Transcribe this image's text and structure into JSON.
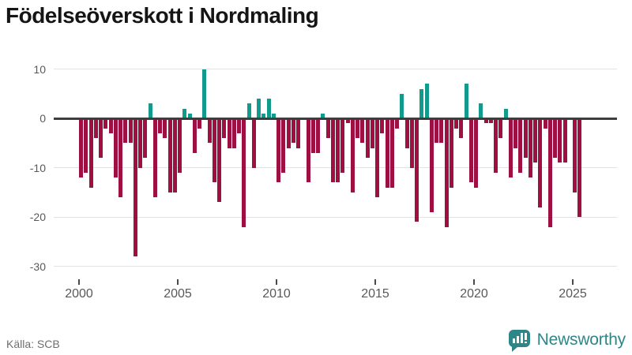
{
  "title": "Födelseöverskott i Nordmaling",
  "source": "Källa: SCB",
  "brand": {
    "name": "Newsworthy"
  },
  "chart_data": {
    "type": "bar",
    "title": "Födelseöverskott i Nordmaling",
    "frequency": "quarterly",
    "start": "2000-Q1",
    "end": "2025-Q2",
    "x_tick_labels": [
      "2000",
      "2005",
      "2010",
      "2015",
      "2020",
      "2025"
    ],
    "y_ticks": [
      10,
      0,
      -10,
      -20,
      -30
    ],
    "ylim": [
      -30,
      10
    ],
    "grid": true,
    "legend": false,
    "series": [
      {
        "name": "Födelseöverskott",
        "values": [
          -12,
          -11,
          -14,
          -4,
          -8,
          -2,
          -3,
          -12,
          -16,
          -5,
          -5,
          -28,
          -10,
          -8,
          3,
          -16,
          -3,
          -4,
          -15,
          -15,
          -11,
          2,
          1,
          -7,
          -2,
          10,
          -5,
          -13,
          -17,
          -4,
          -6,
          -6,
          -3,
          -22,
          3,
          -10,
          4,
          1,
          4,
          1,
          -13,
          -11,
          -6,
          -5,
          -6,
          0,
          -13,
          -7,
          -7,
          1,
          -4,
          -13,
          -13,
          -11,
          -1,
          -15,
          -4,
          -5,
          -8,
          -6,
          -16,
          -3,
          -14,
          -14,
          -2,
          5,
          -6,
          -10,
          -21,
          6,
          7,
          -19,
          -5,
          -5,
          -22,
          -14,
          -2,
          -4,
          7,
          -13,
          -14,
          3,
          -1,
          -1,
          -11,
          -4,
          2,
          -12,
          -6,
          -11,
          -8,
          -12,
          -9,
          -18,
          -2,
          -22,
          -8,
          -9,
          -9,
          0,
          -15,
          -20
        ]
      }
    ],
    "colors": {
      "positive": "#119a8d",
      "negative": "#9e0f42",
      "zero_axis": "#3d3d3d",
      "gridline": "#e3e3e3",
      "tick_text": "#595959"
    }
  }
}
